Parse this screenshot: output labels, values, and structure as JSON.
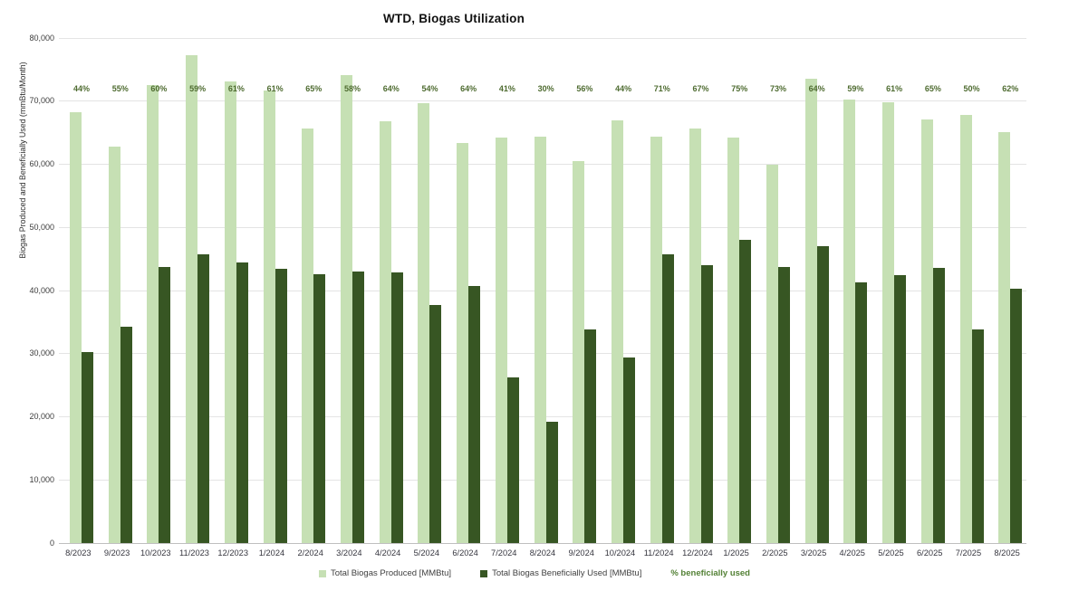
{
  "chart_data": {
    "type": "bar",
    "title": "WTD, Biogas Utilization",
    "ylabel": "Biogas Produced and Beneficially Used (mmBtu/Month)",
    "xlabel": "",
    "ylim": [
      0,
      80000
    ],
    "ytick_step": 10000,
    "yticks": [
      "0",
      "10,000",
      "20,000",
      "30,000",
      "40,000",
      "50,000",
      "60,000",
      "70,000",
      "80,000"
    ],
    "grid": true,
    "legend_position": "bottom",
    "categories": [
      "8/2023",
      "9/2023",
      "10/2023",
      "11/2023",
      "12/2023",
      "1/2024",
      "2/2024",
      "3/2024",
      "4/2024",
      "5/2024",
      "6/2024",
      "7/2024",
      "8/2024",
      "9/2024",
      "10/2024",
      "11/2024",
      "12/2024",
      "1/2025",
      "2/2025",
      "3/2025",
      "4/2025",
      "5/2025",
      "6/2025",
      "7/2025",
      "8/2025"
    ],
    "series": [
      {
        "name": "Total Biogas Produced [MMBtu]",
        "color": "#c6e0b4",
        "values": [
          68300,
          62800,
          72600,
          77300,
          73100,
          71700,
          65600,
          74100,
          66800,
          69700,
          63400,
          64200,
          64400,
          60500,
          66900,
          64400,
          65700,
          64200,
          60000,
          73500,
          70200,
          69800,
          67100,
          67800,
          65100
        ]
      },
      {
        "name": "Total Biogas Beneficially Used [MMBtu]",
        "color": "#375623",
        "values": [
          30300,
          34300,
          43700,
          45800,
          44400,
          43500,
          42600,
          43000,
          42800,
          37700,
          40700,
          26200,
          19200,
          33900,
          29400,
          45700,
          44000,
          48000,
          43700,
          47000,
          41300,
          42400,
          43600,
          33900,
          40300
        ]
      }
    ],
    "percent_series": {
      "name": "% beneficially used",
      "color": "#538135",
      "labels": [
        "44%",
        "55%",
        "60%",
        "59%",
        "61%",
        "61%",
        "65%",
        "58%",
        "64%",
        "54%",
        "64%",
        "41%",
        "30%",
        "56%",
        "44%",
        "71%",
        "67%",
        "75%",
        "73%",
        "64%",
        "59%",
        "61%",
        "65%",
        "50%",
        "62%"
      ]
    }
  }
}
